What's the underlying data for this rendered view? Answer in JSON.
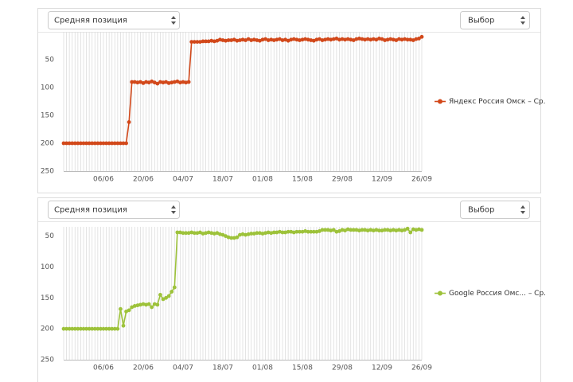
{
  "chart_data": [
    {
      "type": "line",
      "controls": {
        "metric": "Средняя позиция",
        "select": "Выбор"
      },
      "categories": [
        null,
        null,
        null,
        null,
        null,
        null,
        null,
        null,
        null,
        null,
        null,
        null,
        null,
        null,
        "06/06",
        null,
        null,
        null,
        null,
        null,
        null,
        null,
        null,
        null,
        null,
        null,
        null,
        null,
        "20/06",
        null,
        null,
        null,
        null,
        null,
        null,
        null,
        null,
        null,
        null,
        null,
        null,
        null,
        "04/07",
        null,
        null,
        null,
        null,
        null,
        null,
        null,
        null,
        null,
        null,
        null,
        null,
        null,
        "18/07",
        null,
        null,
        null,
        null,
        null,
        null,
        null,
        null,
        null,
        null,
        null,
        null,
        null,
        "01/08",
        null,
        null,
        null,
        null,
        null,
        null,
        null,
        null,
        null,
        null,
        null,
        null,
        null,
        "15/08",
        null,
        null,
        null,
        null,
        null,
        null,
        null,
        null,
        null,
        null,
        null,
        null,
        null,
        "29/08",
        null,
        null,
        null,
        null,
        null,
        null,
        null,
        null,
        null,
        null,
        null,
        null,
        null,
        "12/09",
        null,
        null,
        null,
        null,
        null,
        null,
        null,
        null,
        null,
        null,
        null,
        null,
        null,
        "26/09"
      ],
      "series": [
        {
          "name": "Яндекс Россия Омск – Ср.",
          "color": "#d2481a",
          "values": [
            200,
            200,
            200,
            200,
            200,
            200,
            200,
            200,
            200,
            200,
            200,
            200,
            200,
            200,
            200,
            200,
            200,
            200,
            200,
            200,
            200,
            200,
            200,
            162,
            90,
            90,
            91,
            90,
            92,
            90,
            91,
            89,
            91,
            93,
            90,
            91,
            90,
            92,
            91,
            90,
            89,
            91,
            90,
            91,
            90,
            18,
            18,
            18,
            18,
            17,
            17,
            17,
            16,
            17,
            16,
            14,
            15,
            16,
            15,
            15,
            14,
            16,
            15,
            14,
            15,
            13,
            15,
            14,
            15,
            16,
            14,
            13,
            15,
            14,
            15,
            14,
            13,
            15,
            14,
            16,
            14,
            13,
            14,
            15,
            14,
            13,
            14,
            15,
            16,
            14,
            13,
            15,
            14,
            13,
            14,
            13,
            12,
            14,
            13,
            14,
            13,
            14,
            15,
            13,
            12,
            13,
            14,
            13,
            14,
            13,
            14,
            12,
            13,
            15,
            14,
            13,
            14,
            15,
            13,
            14,
            13,
            14,
            14,
            15,
            13,
            12,
            9
          ]
        }
      ],
      "ylim": [
        250,
        0
      ],
      "yticks": [
        50,
        100,
        150,
        200,
        250
      ],
      "x_grid": true,
      "legend": "right"
    },
    {
      "type": "line",
      "controls": {
        "metric": "Средняя позиция",
        "select": "Выбор"
      },
      "categories": [
        null,
        null,
        null,
        null,
        null,
        null,
        null,
        null,
        null,
        null,
        null,
        null,
        null,
        null,
        "06/06",
        null,
        null,
        null,
        null,
        null,
        null,
        null,
        null,
        null,
        null,
        null,
        null,
        null,
        "20/06",
        null,
        null,
        null,
        null,
        null,
        null,
        null,
        null,
        null,
        null,
        null,
        null,
        null,
        "04/07",
        null,
        null,
        null,
        null,
        null,
        null,
        null,
        null,
        null,
        null,
        null,
        null,
        null,
        "18/07",
        null,
        null,
        null,
        null,
        null,
        null,
        null,
        null,
        null,
        null,
        null,
        null,
        null,
        "01/08",
        null,
        null,
        null,
        null,
        null,
        null,
        null,
        null,
        null,
        null,
        null,
        null,
        null,
        "15/08",
        null,
        null,
        null,
        null,
        null,
        null,
        null,
        null,
        null,
        null,
        null,
        null,
        null,
        "29/08",
        null,
        null,
        null,
        null,
        null,
        null,
        null,
        null,
        null,
        null,
        null,
        null,
        null,
        "12/09",
        null,
        null,
        null,
        null,
        null,
        null,
        null,
        null,
        null,
        null,
        null,
        null,
        null,
        "26/09"
      ],
      "series": [
        {
          "name": "Google Россия Омс... – Ср.",
          "color": "#9dc23a",
          "values": [
            200,
            200,
            200,
            200,
            200,
            200,
            200,
            200,
            200,
            200,
            200,
            200,
            200,
            200,
            200,
            200,
            200,
            200,
            200,
            200,
            168,
            195,
            172,
            170,
            165,
            163,
            162,
            161,
            160,
            161,
            160,
            165,
            160,
            161,
            145,
            152,
            150,
            147,
            140,
            133,
            44,
            44,
            45,
            45,
            45,
            44,
            45,
            45,
            44,
            46,
            45,
            44,
            45,
            46,
            45,
            47,
            48,
            50,
            52,
            53,
            53,
            52,
            48,
            47,
            48,
            47,
            46,
            46,
            45,
            45,
            46,
            45,
            44,
            45,
            44,
            44,
            43,
            44,
            44,
            43,
            43,
            44,
            43,
            43,
            43,
            42,
            43,
            43,
            43,
            43,
            42,
            40,
            40,
            40,
            41,
            40,
            43,
            42,
            40,
            41,
            39,
            40,
            40,
            40,
            41,
            40,
            40,
            41,
            40,
            41,
            40,
            41,
            41,
            40,
            40,
            41,
            40,
            41,
            40,
            41,
            40,
            38,
            44,
            39,
            40,
            39,
            40
          ]
        }
      ],
      "ylim": [
        250,
        35
      ],
      "yticks": [
        50,
        100,
        150,
        200,
        250
      ],
      "x_grid": true,
      "legend": "right"
    }
  ]
}
